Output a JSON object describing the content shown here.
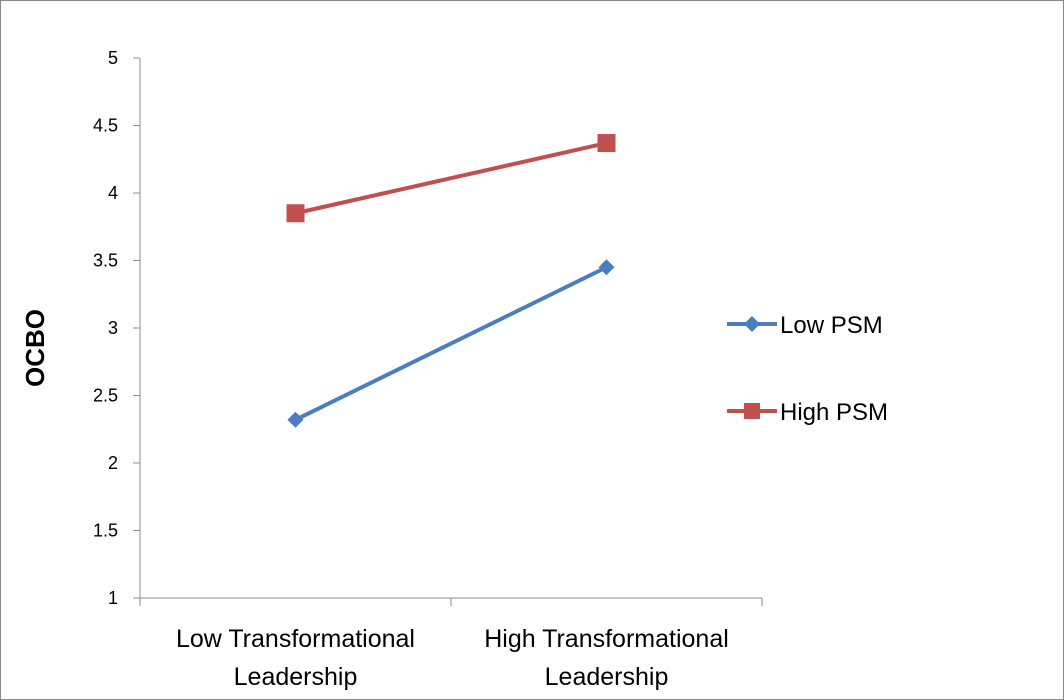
{
  "chart_data": {
    "type": "line",
    "ylabel": "OCBO",
    "xlabel": "",
    "categories": [
      "Low Transformational Leadership",
      "High Transformational Leadership"
    ],
    "category_lines": [
      [
        "Low Transformational",
        "Leadership"
      ],
      [
        "High Transformational",
        "Leadership"
      ]
    ],
    "ylim": [
      1,
      5
    ],
    "yticks": [
      1,
      1.5,
      2,
      2.5,
      3,
      3.5,
      4,
      4.5,
      5
    ],
    "ytick_labels": [
      "1",
      "1.5",
      "2",
      "2.5",
      "3",
      "3.5",
      "4",
      "4.5",
      "5"
    ],
    "grid": false,
    "legend_position": "right",
    "series": [
      {
        "name": "Low PSM",
        "values": [
          2.32,
          3.45
        ],
        "color": "#4a7ebf",
        "marker": "diamond"
      },
      {
        "name": "High PSM",
        "values": [
          3.85,
          4.37
        ],
        "color": "#c0504d",
        "marker": "square"
      }
    ]
  }
}
